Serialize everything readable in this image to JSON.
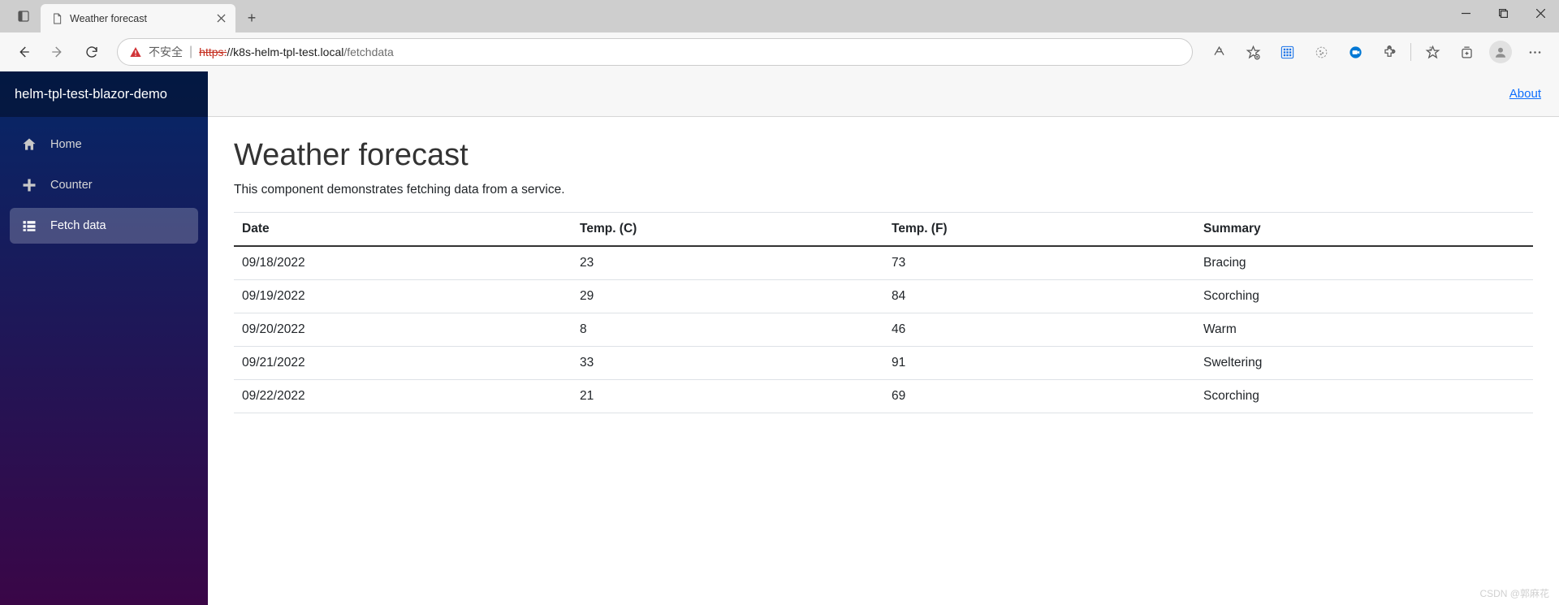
{
  "browser": {
    "tab_title": "Weather forecast",
    "insecure_label": "不安全",
    "url_protocol": "https:",
    "url_host": "//k8s-helm-tpl-test.local",
    "url_path": "/fetchdata"
  },
  "sidebar": {
    "brand": "helm-tpl-test-blazor-demo",
    "items": [
      {
        "label": "Home",
        "icon": "home",
        "active": false
      },
      {
        "label": "Counter",
        "icon": "plus",
        "active": false
      },
      {
        "label": "Fetch data",
        "icon": "list",
        "active": true
      }
    ]
  },
  "topbar": {
    "about": "About"
  },
  "page": {
    "title": "Weather forecast",
    "subtitle": "This component demonstrates fetching data from a service.",
    "table": {
      "columns": [
        "Date",
        "Temp. (C)",
        "Temp. (F)",
        "Summary"
      ],
      "rows": [
        [
          "09/18/2022",
          "23",
          "73",
          "Bracing"
        ],
        [
          "09/19/2022",
          "29",
          "84",
          "Scorching"
        ],
        [
          "09/20/2022",
          "8",
          "46",
          "Warm"
        ],
        [
          "09/21/2022",
          "33",
          "91",
          "Sweltering"
        ],
        [
          "09/22/2022",
          "21",
          "69",
          "Scorching"
        ]
      ],
      "header_border_color": "#333333",
      "row_border_color": "#dee2e6"
    }
  },
  "colors": {
    "sidebar_gradient_top": "#052767",
    "sidebar_gradient_bottom": "#3a0647",
    "link": "#0d6efd"
  },
  "watermark": "CSDN @郭麻花"
}
